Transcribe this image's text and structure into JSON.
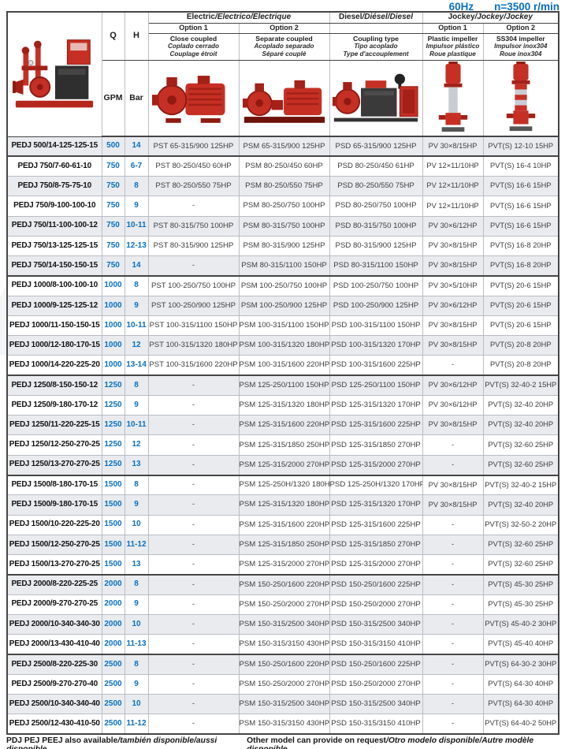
{
  "title": {
    "frequency": "60Hz",
    "speed": "n=3500 r/min"
  },
  "header": {
    "q_label": "Q",
    "h_label": "H",
    "q_unit": "GPM",
    "h_unit": "Bar",
    "groups": {
      "electric": {
        "en": "Electric",
        "i18n": "/Electrico/Électrique"
      },
      "diesel": {
        "en": "Diesel",
        "i18n": "/Diésel/Diesel"
      },
      "jockey": {
        "en": "Jockey",
        "i18n": "/Jockey/Jockey"
      }
    },
    "option1": "Option 1",
    "option2": "Option 2",
    "descriptions": {
      "close_coupled": {
        "en": "Close coupled",
        "es": "Coplado cerrado",
        "fr": "Couplage étroit"
      },
      "separate_coupled": {
        "en": "Separate coupled",
        "es": "Acoplado separado",
        "fr": "Séparé couplé"
      },
      "coupling_type": {
        "en": "Coupling type",
        "es": "Tipo acoplado",
        "fr": "Type d'accouplement"
      },
      "plastic_impeller": {
        "en": "Plastic impeller",
        "es": "Impulsor plástico",
        "fr": "Roue plastique"
      },
      "ss304_impeller": {
        "en": "SS304 impeller",
        "es": "Impulsor inox304",
        "fr": "Roue inox304"
      }
    },
    "images": [
      "package-pump-image",
      "close-coupled-pump-image",
      "separate-coupled-pump-image",
      "diesel-pump-set-image",
      "vertical-jockey-pump-image",
      "ss304-jockey-pump-image"
    ]
  },
  "columns": [
    "model",
    "q",
    "h",
    "electric1",
    "electric2",
    "diesel",
    "jockey1",
    "jockey2"
  ],
  "rows": [
    {
      "model": "PEDJ 500/14-125-125-15",
      "q": "500",
      "h": "14",
      "electric1": "PST 65-315/900 125HP",
      "electric2": "PSM 65-315/900 125HP",
      "diesel": "PSD 65-315/900 125HP",
      "jockey1": "PV 30×8/15HP",
      "jockey2": "PVT(S) 12-10 15HP"
    },
    {
      "model": "PEDJ 750/7-60-61-10",
      "q": "750",
      "h": "6-7",
      "electric1": "PST 80-250/450 60HP",
      "electric2": "PSM 80-250/450 60HP",
      "diesel": "PSD 80-250/450 61HP",
      "jockey1": "PV 12×11/10HP",
      "jockey2": "PVT(S) 16-4 10HP"
    },
    {
      "model": "PEDJ 750/8-75-75-10",
      "q": "750",
      "h": "8",
      "electric1": "PST 80-250/550 75HP",
      "electric2": "PSM 80-250/550 75HP",
      "diesel": "PSD 80-250/550 75HP",
      "jockey1": "PV 12×11/10HP",
      "jockey2": "PVT(S) 16-6 15HP"
    },
    {
      "model": "PEDJ 750/9-100-100-10",
      "q": "750",
      "h": "9",
      "electric1": "-",
      "electric2": "PSM 80-250/750 100HP",
      "diesel": "PSD 80-250/750 100HP",
      "jockey1": "PV 12×11/10HP",
      "jockey2": "PVT(S) 16-6 15HP"
    },
    {
      "model": "PEDJ 750/11-100-100-12",
      "q": "750",
      "h": "10-11",
      "electric1": "PST 80-315/750 100HP",
      "electric2": "PSM 80-315/750 100HP",
      "diesel": "PSD 80-315/750 100HP",
      "jockey1": "PV 30×6/12HP",
      "jockey2": "PVT(S) 16-6 15HP"
    },
    {
      "model": "PEDJ 750/13-125-125-15",
      "q": "750",
      "h": "12-13",
      "electric1": "PST 80-315/900 125HP",
      "electric2": "PSM 80-315/900 125HP",
      "diesel": "PSD 80-315/900 125HP",
      "jockey1": "PV 30×8/15HP",
      "jockey2": "PVT(S) 16-8 20HP"
    },
    {
      "model": "PEDJ 750/14-150-150-15",
      "q": "750",
      "h": "14",
      "electric1": "-",
      "electric2": "PSM 80-315/1100 150HP",
      "diesel": "PSD 80-315/1100 150HP",
      "jockey1": "PV 30×8/15HP",
      "jockey2": "PVT(S) 16-8 20HP"
    },
    {
      "model": "PEDJ 1000/8-100-100-10",
      "q": "1000",
      "h": "8",
      "electric1": "PST 100-250/750 100HP",
      "electric2": "PSM 100-250/750 100HP",
      "diesel": "PSD 100-250/750 100HP",
      "jockey1": "PV 30×5/10HP",
      "jockey2": "PVT(S) 20-6 15HP"
    },
    {
      "model": "PEDJ 1000/9-125-125-12",
      "q": "1000",
      "h": "9",
      "electric1": "PST 100-250/900 125HP",
      "electric2": "PSM 100-250/900 125HP",
      "diesel": "PSD 100-250/900 125HP",
      "jockey1": "PV 30×6/12HP",
      "jockey2": "PVT(S) 20-6 15HP"
    },
    {
      "model": "PEDJ 1000/11-150-150-15",
      "q": "1000",
      "h": "10-11",
      "electric1": "PST 100-315/1100 150HP",
      "electric2": "PSM 100-315/1100 150HP",
      "diesel": "PSD 100-315/1100 150HP",
      "jockey1": "PV 30×8/15HP",
      "jockey2": "PVT(S) 20-6 15HP"
    },
    {
      "model": "PEDJ 1000/12-180-170-15",
      "q": "1000",
      "h": "12",
      "electric1": "PST 100-315/1320 180HP",
      "electric2": "PSM 100-315/1320 180HP",
      "diesel": "PSD 100-315/1320 170HP",
      "jockey1": "PV 30×8/15HP",
      "jockey2": "PVT(S) 20-8 20HP"
    },
    {
      "model": "PEDJ 1000/14-220-225-20",
      "q": "1000",
      "h": "13-14",
      "electric1": "PST 100-315/1600 220HP",
      "electric2": "PSM 100-315/1600 220HP",
      "diesel": "PSD 100-315/1600 225HP",
      "jockey1": "-",
      "jockey2": "PVT(S) 20-8 20HP"
    },
    {
      "model": "PEDJ 1250/8-150-150-12",
      "q": "1250",
      "h": "8",
      "electric1": "-",
      "electric2": "PSM 125-250/1100 150HP",
      "diesel": "PSD 125-250/1100 150HP",
      "jockey1": "PV 30×6/12HP",
      "jockey2": "PVT(S) 32-40-2 15HP"
    },
    {
      "model": "PEDJ 1250/9-180-170-12",
      "q": "1250",
      "h": "9",
      "electric1": "-",
      "electric2": "PSM 125-315/1320 180HP",
      "diesel": "PSD 125-315/1320 170HP",
      "jockey1": "PV 30×6/12HP",
      "jockey2": "PVT(S) 32-40 20HP"
    },
    {
      "model": "PEDJ 1250/11-220-225-15",
      "q": "1250",
      "h": "10-11",
      "electric1": "-",
      "electric2": "PSM 125-315/1600 220HP",
      "diesel": "PSD 125-315/1600 225HP",
      "jockey1": "PV 30×8/15HP",
      "jockey2": "PVT(S) 32-40 20HP"
    },
    {
      "model": "PEDJ 1250/12-250-270-25",
      "q": "1250",
      "h": "12",
      "electric1": "-",
      "electric2": "PSM 125-315/1850 250HP",
      "diesel": "PSD 125-315/1850 270HP",
      "jockey1": "-",
      "jockey2": "PVT(S) 32-60 25HP"
    },
    {
      "model": "PEDJ 1250/13-270-270-25",
      "q": "1250",
      "h": "13",
      "electric1": "-",
      "electric2": "PSM 125-315/2000 270HP",
      "diesel": "PSD 125-315/2000 270HP",
      "jockey1": "-",
      "jockey2": "PVT(S) 32-60 25HP"
    },
    {
      "model": "PEDJ 1500/8-180-170-15",
      "q": "1500",
      "h": "8",
      "electric1": "-",
      "electric2": "PSM 125-250H/1320 180HP",
      "diesel": "PSD 125-250H/1320 170HP",
      "jockey1": "PV 30×8/15HP",
      "jockey2": "PVT(S) 32-40-2 15HP"
    },
    {
      "model": "PEDJ 1500/9-180-170-15",
      "q": "1500",
      "h": "9",
      "electric1": "-",
      "electric2": "PSM 125-315/1320 180HP",
      "diesel": "PSD 125-315/1320 170HP",
      "jockey1": "PV 30×8/15HP",
      "jockey2": "PVT(S) 32-40 20HP"
    },
    {
      "model": "PEDJ 1500/10-220-225-20",
      "q": "1500",
      "h": "10",
      "electric1": "-",
      "electric2": "PSM 125-315/1600 220HP",
      "diesel": "PSD 125-315/1600 225HP",
      "jockey1": "-",
      "jockey2": "PVT(S) 32-50-2 20HP"
    },
    {
      "model": "PEDJ 1500/12-250-270-25",
      "q": "1500",
      "h": "11-12",
      "electric1": "-",
      "electric2": "PSM 125-315/1850 250HP",
      "diesel": "PSD 125-315/1850 270HP",
      "jockey1": "-",
      "jockey2": "PVT(S) 32-60 25HP"
    },
    {
      "model": "PEDJ 1500/13-270-270-25",
      "q": "1500",
      "h": "13",
      "electric1": "-",
      "electric2": "PSM 125-315/2000 270HP",
      "diesel": "PSD 125-315/2000 270HP",
      "jockey1": "-",
      "jockey2": "PVT(S) 32-60 25HP"
    },
    {
      "model": "PEDJ 2000/8-220-225-25",
      "q": "2000",
      "h": "8",
      "electric1": "-",
      "electric2": "PSM 150-250/1600 220HP",
      "diesel": "PSD 150-250/1600 225HP",
      "jockey1": "-",
      "jockey2": "PVT(S) 45-30 25HP"
    },
    {
      "model": "PEDJ 2000/9-270-270-25",
      "q": "2000",
      "h": "9",
      "electric1": "-",
      "electric2": "PSM 150-250/2000 270HP",
      "diesel": "PSD 150-250/2000 270HP",
      "jockey1": "-",
      "jockey2": "PVT(S) 45-30 25HP"
    },
    {
      "model": "PEDJ 2000/10-340-340-30",
      "q": "2000",
      "h": "10",
      "electric1": "-",
      "electric2": "PSM 150-315/2500 340HP",
      "diesel": "PSD 150-315/2500 340HP",
      "jockey1": "-",
      "jockey2": "PVT(S) 45-40-2 30HP"
    },
    {
      "model": "PEDJ 2000/13-430-410-40",
      "q": "2000",
      "h": "11-13",
      "electric1": "-",
      "electric2": "PSM 150-315/3150 430HP",
      "diesel": "PSD 150-315/3150 410HP",
      "jockey1": "-",
      "jockey2": "PVT(S) 45-40 40HP"
    },
    {
      "model": "PEDJ 2500/8-220-225-30",
      "q": "2500",
      "h": "8",
      "electric1": "-",
      "electric2": "PSM 150-250/1600 220HP",
      "diesel": "PSD 150-250/1600 225HP",
      "jockey1": "-",
      "jockey2": "PVT(S) 64-30-2 30HP"
    },
    {
      "model": "PEDJ 2500/9-270-270-40",
      "q": "2500",
      "h": "9",
      "electric1": "-",
      "electric2": "PSM 150-250/2000 270HP",
      "diesel": "PSD 150-250/2000 270HP",
      "jockey1": "-",
      "jockey2": "PVT(S) 64-30 40HP"
    },
    {
      "model": "PEDJ 2500/10-340-340-40",
      "q": "2500",
      "h": "10",
      "electric1": "-",
      "electric2": "PSM 150-315/2500 340HP",
      "diesel": "PSD 150-315/2500 340HP",
      "jockey1": "-",
      "jockey2": "PVT(S) 64-30 40HP"
    },
    {
      "model": "PEDJ 2500/12-430-410-50",
      "q": "2500",
      "h": "11-12",
      "electric1": "-",
      "electric2": "PSM 150-315/3150 430HP",
      "diesel": "PSD 150-315/3150 410HP",
      "jockey1": "-",
      "jockey2": "PVT(S) 64-40-2 50HP"
    }
  ],
  "footer": {
    "left_en": "PDJ PEJ PEEJ also available",
    "left_i18n": "/también disponible/aussi disponible",
    "right_en": "Other model can provide on request",
    "right_i18n": "/Otro modelo disponible/Autre modèle disponible"
  },
  "colors": {
    "accent_blue": "#0a6fc2",
    "pump_red": "#c62f24",
    "row_alt_bg": "#e9ebef"
  }
}
